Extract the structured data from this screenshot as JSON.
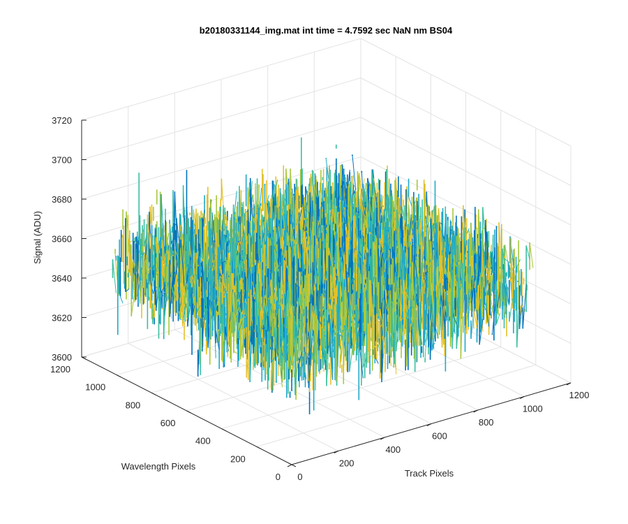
{
  "chart_data": {
    "type": "surface",
    "title": "b20180331144_img.mat int time = 4.7592 sec  NaN nm BS04",
    "xlabel": "Track Pixels",
    "ylabel": "Wavelength Pixels",
    "zlabel": "Signal (ADU)",
    "xlim": [
      0,
      1200
    ],
    "ylim": [
      0,
      1200
    ],
    "zlim": [
      3600,
      3720
    ],
    "x_ticks": [
      "0",
      "200",
      "400",
      "600",
      "800",
      "1000",
      "1200"
    ],
    "y_ticks": [
      "0",
      "200",
      "400",
      "600",
      "800",
      "1000",
      "1200"
    ],
    "z_ticks": [
      "3600",
      "3620",
      "3640",
      "3660",
      "3680",
      "3700",
      "3720"
    ],
    "data_extent": {
      "x": [
        1,
        1024
      ],
      "y": [
        1,
        1024
      ]
    },
    "surface_mean": 3655,
    "noise_range": [
      3615,
      3705
    ],
    "colormap": [
      "#0072bd",
      "#1fa9c9",
      "#3bbfa0",
      "#a6c83c",
      "#e3c12c"
    ],
    "grid": true
  }
}
